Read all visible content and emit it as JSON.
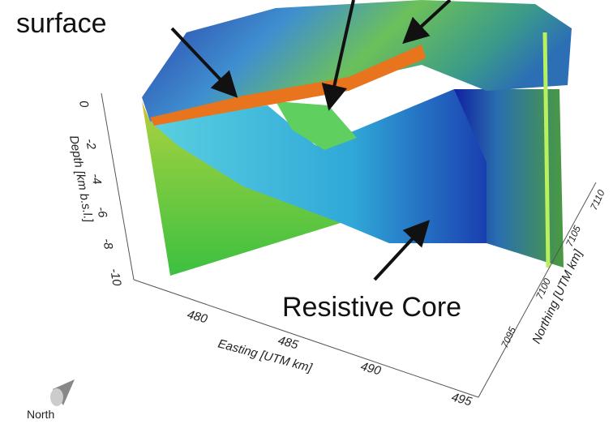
{
  "annotations": {
    "surface": "surface",
    "core": "Resistive Core"
  },
  "axes": {
    "depth": {
      "label": "Depth [km b.s.l.]",
      "ticks": [
        0,
        -2,
        -4,
        -6,
        -8,
        -10
      ]
    },
    "easting": {
      "label": "Easting [UTM km]",
      "ticks": [
        480,
        485,
        490,
        495
      ]
    },
    "northing": {
      "label": "Northing [UTM km]",
      "ticks": [
        7095,
        7100,
        7105,
        7110
      ]
    }
  },
  "compass": "North"
}
